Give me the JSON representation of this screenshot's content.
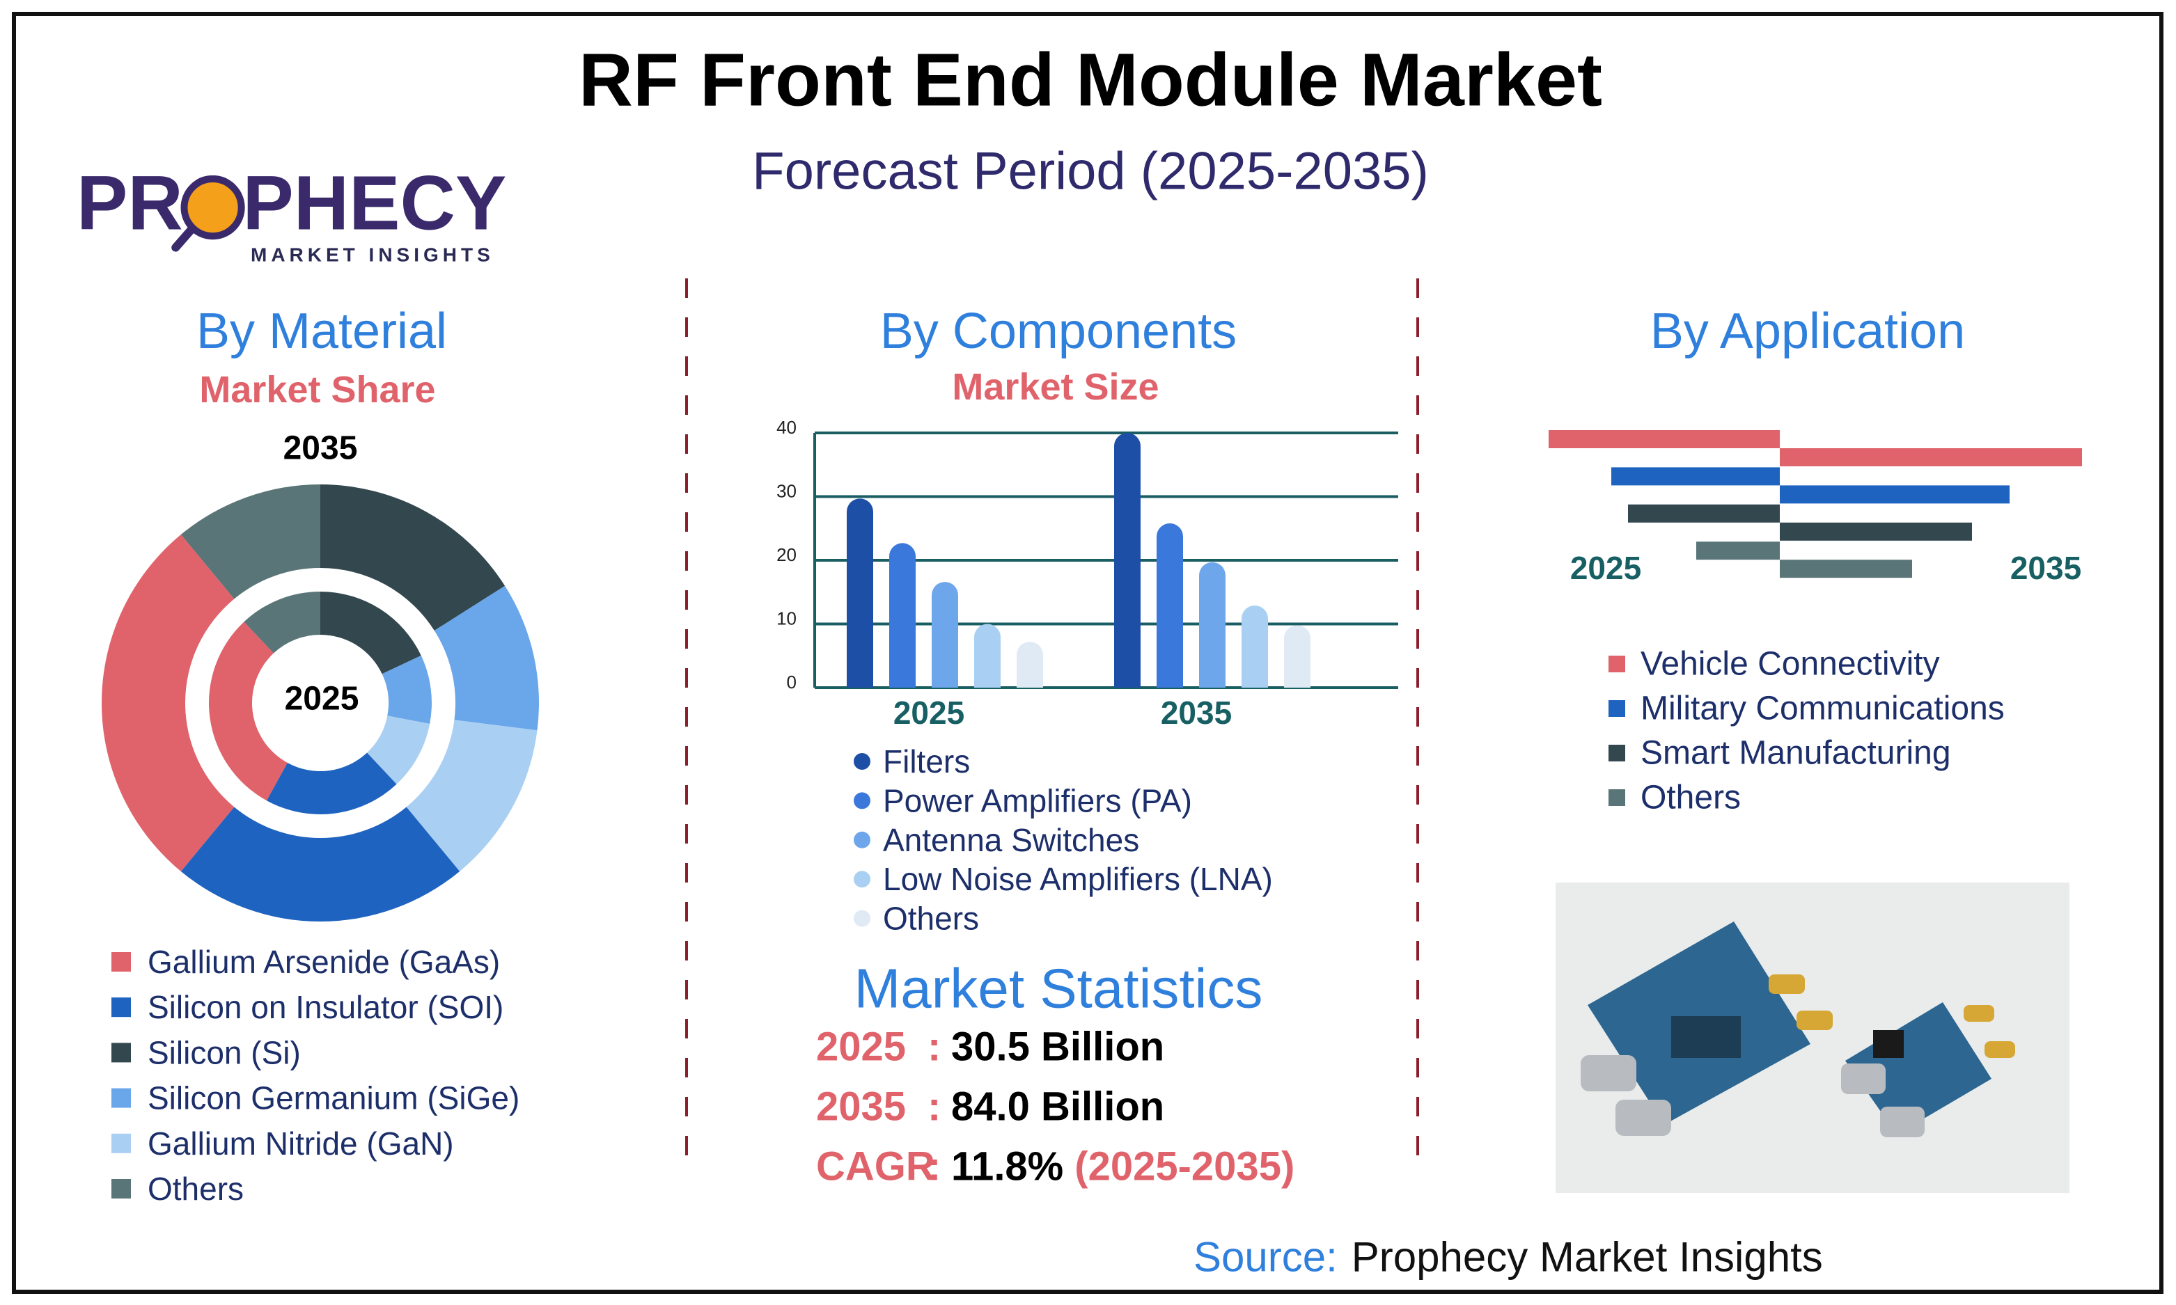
{
  "header": {
    "title": "RF Front End Module Market",
    "subtitle": "Forecast Period (2025-2035)"
  },
  "logo": {
    "name": "PROPHECY",
    "tagline": "MARKET INSIGHTS"
  },
  "chart_data": [
    {
      "type": "donut",
      "title": "By Material",
      "subtitle": "Market Share",
      "categories": [
        "Gallium Arsenide (GaAs)",
        "Silicon on Insulator (SOI)",
        "Silicon (Si)",
        "Silicon Germanium (SiGe)",
        "Gallium Nitride (GaN)",
        "Others"
      ],
      "colors": [
        "#e0636b",
        "#1f63c0",
        "#33474f",
        "#6aa6ea",
        "#a9cff2",
        "#5a7578"
      ],
      "series": [
        {
          "name": "2035",
          "values": [
            28,
            22,
            16,
            11,
            12,
            11
          ]
        },
        {
          "name": "2025",
          "values": [
            30,
            20,
            18,
            10,
            10,
            12
          ]
        }
      ]
    },
    {
      "type": "bar",
      "title": "By Components",
      "subtitle": "Market Size",
      "categories": [
        "2025",
        "2035"
      ],
      "series": [
        {
          "name": "Filters",
          "color": "#1d4fa6",
          "values": [
            29.7,
            40
          ]
        },
        {
          "name": "Power Amplifiers (PA)",
          "color": "#3b78dc",
          "values": [
            22.7,
            25.8
          ]
        },
        {
          "name": "Antenna Switches",
          "color": "#6ea6ec",
          "values": [
            16.6,
            19.7
          ]
        },
        {
          "name": "Low Noise Amplifiers (LNA)",
          "color": "#a9d0f2",
          "values": [
            10,
            12.9
          ]
        },
        {
          "name": "Others",
          "color": "#dfeaf5",
          "values": [
            7.2,
            9.8
          ]
        }
      ],
      "ylim": [
        0,
        40
      ],
      "yticks": [
        0,
        10,
        20,
        30,
        40
      ],
      "grid": true
    },
    {
      "type": "butterfly",
      "title": "By Application",
      "categories": [
        "Vehicle Connectivity",
        "Military Communications",
        "Smart Manufacturing",
        "Others"
      ],
      "colors": [
        "#e0636b",
        "#1f63c0",
        "#33474f",
        "#5a7578"
      ],
      "series": [
        {
          "name": "2025",
          "values": [
            16.6,
            12.1,
            10.9,
            6.0
          ]
        },
        {
          "name": "2035",
          "values": [
            21.7,
            16.5,
            13.8,
            9.5
          ]
        }
      ]
    }
  ],
  "statistics": {
    "title": "Market Statistics",
    "separator": ":",
    "rows": [
      {
        "label": "2025",
        "value": "30.5 Billion"
      },
      {
        "label": "2035",
        "value": "84.0 Billion"
      },
      {
        "label": "CAGR",
        "value": "11.8%",
        "period": "(2025-2035)"
      }
    ]
  },
  "source": {
    "label": "Source:",
    "text": "Prophecy Market Insights"
  }
}
